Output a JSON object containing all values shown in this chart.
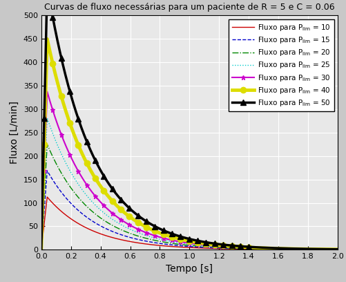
{
  "title": "Curvas de fluxo necessárias para um paciente de R = 5 e C = 0.06",
  "xlabel": "Tempo [s]",
  "ylabel": "Fluxo [L/min]",
  "R": 5,
  "C": 0.06,
  "t_rise": 0.04,
  "xlim": [
    0,
    2
  ],
  "ylim": [
    0,
    500
  ],
  "xticks": [
    0,
    0.2,
    0.4,
    0.6,
    0.8,
    1.0,
    1.2,
    1.4,
    1.6,
    1.8,
    2.0
  ],
  "yticks": [
    0,
    50,
    100,
    150,
    200,
    250,
    300,
    350,
    400,
    450,
    500
  ],
  "P_lim_values": [
    10,
    15,
    20,
    25,
    30,
    40,
    50
  ],
  "colors": [
    "#cc0000",
    "#0000cc",
    "#008800",
    "#00cccc",
    "#cc00cc",
    "#dddd00",
    "#000000"
  ],
  "linestyles": [
    "-",
    "--",
    "-.",
    ":",
    "-",
    "-",
    "-"
  ],
  "markers": [
    "",
    "",
    "",
    "",
    "*",
    "o",
    "^"
  ],
  "marker_sizes": [
    0,
    0,
    0,
    0,
    5,
    6,
    6
  ],
  "linewidths": [
    1.0,
    1.0,
    1.0,
    1.0,
    1.5,
    3.5,
    2.5
  ],
  "legend_labels": [
    "Fluxo para P$_\\mathrm{lim}$ = 10",
    "Fluxo para P$_\\mathrm{lim}$ = 15",
    "Fluxo para P$_\\mathrm{lim}$ = 20",
    "Fluxo para P$_\\mathrm{lim}$ = 25",
    "Fluxo para P$_\\mathrm{lim}$ = 30",
    "Fluxo para P$_\\mathrm{lim}$ = 40",
    "Fluxo para P$_\\mathrm{lim}$ = 50"
  ],
  "background_color": "#c8c8c8",
  "axes_background_color": "#e8e8e8",
  "dt": 0.0005,
  "t_end": 2.0
}
